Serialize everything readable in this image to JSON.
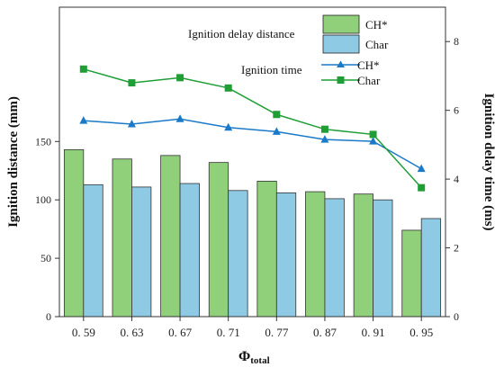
{
  "chart_data": {
    "type": "bar+line",
    "categories": [
      "0. 59",
      "0. 63",
      "0. 67",
      "0. 71",
      "0. 77",
      "0. 87",
      "0. 91",
      "0. 95"
    ],
    "xlabel_main": "Φ",
    "xlabel_sub": "total",
    "ylabel_left": "Ignition distance (mm)",
    "ylabel_right": "Ignition delay time (ms)",
    "left_ticks": [
      "0",
      "50",
      "100",
      "150"
    ],
    "left_tick_values": [
      0,
      50,
      100,
      150
    ],
    "right_ticks": [
      "0",
      "2",
      "4",
      "6",
      "8"
    ],
    "right_tick_values": [
      0,
      2,
      4,
      6,
      8
    ],
    "ylim_left": [
      0,
      265
    ],
    "ylim_right": [
      0,
      9
    ],
    "bar_series": [
      {
        "name": "CH*",
        "color": "#90d07a",
        "values": [
          143,
          135,
          138,
          132,
          116,
          107,
          105,
          74
        ]
      },
      {
        "name": "Char",
        "color": "#8ecae4",
        "values": [
          113,
          111,
          114,
          108,
          106,
          101,
          100,
          84
        ]
      }
    ],
    "line_series": [
      {
        "name": "CH*",
        "color": "#1a7ac8",
        "marker": "triangle",
        "values": [
          5.7,
          5.6,
          5.75,
          5.5,
          5.38,
          5.15,
          5.1,
          4.3
        ]
      },
      {
        "name": "Char",
        "color": "#1e9e35",
        "marker": "square",
        "values": [
          7.2,
          6.8,
          6.95,
          6.65,
          5.88,
          5.45,
          5.3,
          3.75
        ]
      }
    ],
    "legend": {
      "bar_heading": "Ignition delay distance",
      "line_heading": "Ignition time",
      "placement": "top-right"
    }
  }
}
